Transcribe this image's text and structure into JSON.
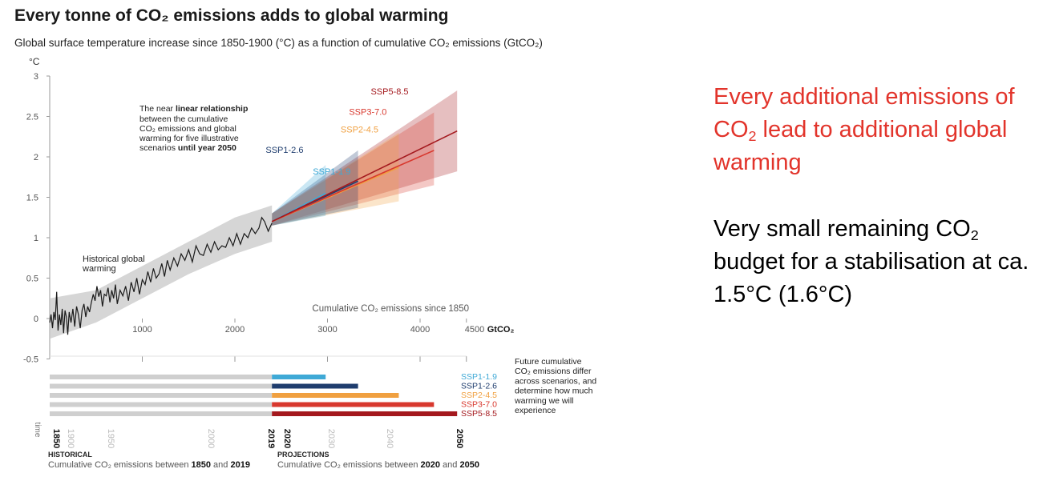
{
  "title": "Every tonne of CO₂ emissions adds to global warming",
  "subtitle": "Global surface temperature increase since 1850-1900 (°C) as a function of cumulative CO₂ emissions (GtCO₂)",
  "side": {
    "line1_pre": "Every additional emissions of CO",
    "line1_sub": "2",
    "line1_post": " lead to additional global warming",
    "line2_pre": "Very small remaining CO",
    "line2_sub": "2",
    "line2_post": " budget for a stabilisation at ca. 1.5°C (1.6°C)"
  },
  "colors": {
    "SSP1-1.9": "#3fa9d6",
    "SSP1-2.6": "#1f3d6e",
    "SSP2-4.5": "#f0a040",
    "SSP3-7.0": "#d8382e",
    "SSP5-8.5": "#a4191e",
    "history": "#1a1a1a",
    "history_band": "#c8c8c8",
    "bars_hist": "#cfcfcf"
  },
  "chart_data": {
    "type": "line",
    "ylabel": "°C",
    "xlabel": "Cumulative CO₂ emissions since 1850",
    "x_unit": "GtCO₂",
    "yticks": [
      "3",
      "2.5",
      "2",
      "1.5",
      "1",
      "0.5",
      "0",
      "-0.5"
    ],
    "xticks": [
      "1000",
      "2000",
      "3000",
      "4000",
      "4500"
    ],
    "ylim": [
      -0.5,
      3
    ],
    "xlim": [
      0,
      4500
    ],
    "annotation_main": {
      "pre": "The near ",
      "bold1": "linear relationship",
      "mid": "between the cumulative CO₂ emissions and global warming for five illustrative scenarios ",
      "bold2": "until year 2050"
    },
    "annotation_history": "Historical global warming",
    "history": [
      [
        0,
        -0.05
      ],
      [
        15,
        0.05
      ],
      [
        30,
        -0.12
      ],
      [
        45,
        0.08
      ],
      [
        60,
        -0.02
      ],
      [
        75,
        0.33
      ],
      [
        90,
        -0.15
      ],
      [
        105,
        0.05
      ],
      [
        120,
        -0.08
      ],
      [
        135,
        0.12
      ],
      [
        150,
        -0.18
      ],
      [
        165,
        0.1
      ],
      [
        180,
        0.02
      ],
      [
        195,
        -0.2
      ],
      [
        210,
        0.08
      ],
      [
        230,
        -0.05
      ],
      [
        250,
        0.12
      ],
      [
        270,
        -0.1
      ],
      [
        290,
        0.15
      ],
      [
        310,
        0.05
      ],
      [
        330,
        -0.12
      ],
      [
        350,
        0.1
      ],
      [
        370,
        0.18
      ],
      [
        390,
        0.02
      ],
      [
        410,
        0.15
      ],
      [
        430,
        0.08
      ],
      [
        450,
        0.2
      ],
      [
        470,
        0.3
      ],
      [
        490,
        0.22
      ],
      [
        510,
        0.4
      ],
      [
        530,
        0.27
      ],
      [
        550,
        0.35
      ],
      [
        570,
        0.15
      ],
      [
        590,
        0.3
      ],
      [
        610,
        0.28
      ],
      [
        630,
        0.38
      ],
      [
        650,
        0.2
      ],
      [
        670,
        0.35
      ],
      [
        690,
        0.25
      ],
      [
        710,
        0.42
      ],
      [
        730,
        0.18
      ],
      [
        760,
        0.35
      ],
      [
        790,
        0.28
      ],
      [
        820,
        0.4
      ],
      [
        850,
        0.22
      ],
      [
        880,
        0.45
      ],
      [
        910,
        0.33
      ],
      [
        940,
        0.5
      ],
      [
        970,
        0.3
      ],
      [
        1000,
        0.48
      ],
      [
        1030,
        0.42
      ],
      [
        1060,
        0.58
      ],
      [
        1090,
        0.45
      ],
      [
        1120,
        0.62
      ],
      [
        1150,
        0.5
      ],
      [
        1180,
        0.55
      ],
      [
        1210,
        0.68
      ],
      [
        1240,
        0.52
      ],
      [
        1270,
        0.72
      ],
      [
        1300,
        0.6
      ],
      [
        1340,
        0.75
      ],
      [
        1380,
        0.65
      ],
      [
        1420,
        0.8
      ],
      [
        1460,
        0.72
      ],
      [
        1500,
        0.85
      ],
      [
        1540,
        0.7
      ],
      [
        1580,
        0.9
      ],
      [
        1620,
        0.8
      ],
      [
        1660,
        0.78
      ],
      [
        1700,
        0.92
      ],
      [
        1740,
        0.82
      ],
      [
        1780,
        0.95
      ],
      [
        1820,
        0.85
      ],
      [
        1860,
        0.9
      ],
      [
        1900,
        0.88
      ],
      [
        1940,
        1.0
      ],
      [
        1980,
        0.9
      ],
      [
        2020,
        1.05
      ],
      [
        2060,
        0.92
      ],
      [
        2100,
        1.05
      ],
      [
        2140,
        1.0
      ],
      [
        2180,
        1.12
      ],
      [
        2220,
        1.05
      ],
      [
        2260,
        1.12
      ],
      [
        2290,
        1.25
      ],
      [
        2320,
        1.2
      ],
      [
        2360,
        1.08
      ],
      [
        2400,
        1.18
      ]
    ],
    "history_band": {
      "x": [
        0,
        500,
        1000,
        1500,
        2000,
        2400
      ],
      "lower": [
        -0.25,
        -0.05,
        0.25,
        0.55,
        0.8,
        0.95
      ],
      "upper": [
        0.25,
        0.35,
        0.65,
        0.95,
        1.25,
        1.4
      ]
    },
    "projections": [
      {
        "name": "SSP1-1.9",
        "x": [
          2400,
          2980
        ],
        "y": [
          1.2,
          1.55
        ],
        "lo": [
          1.15,
          1.27
        ],
        "hi": [
          1.3,
          1.9
        ],
        "label_at": [
          3250,
          1.78
        ]
      },
      {
        "name": "SSP1-2.6",
        "x": [
          2400,
          3330
        ],
        "y": [
          1.2,
          1.7
        ],
        "lo": [
          1.15,
          1.37
        ],
        "hi": [
          1.3,
          2.08
        ],
        "label_at": [
          2740,
          2.05
        ]
      },
      {
        "name": "SSP2-4.5",
        "x": [
          2400,
          3770
        ],
        "y": [
          1.2,
          1.87
        ],
        "lo": [
          1.15,
          1.45
        ],
        "hi": [
          1.3,
          2.3
        ],
        "label_at": [
          3550,
          2.3
        ]
      },
      {
        "name": "SSP3-7.0",
        "x": [
          2400,
          4150
        ],
        "y": [
          1.2,
          2.08
        ],
        "lo": [
          1.15,
          1.65
        ],
        "hi": [
          1.3,
          2.55
        ],
        "label_at": [
          3640,
          2.52
        ]
      },
      {
        "name": "SSP5-8.5",
        "x": [
          2400,
          4400
        ],
        "y": [
          1.2,
          2.32
        ],
        "lo": [
          1.15,
          1.82
        ],
        "hi": [
          1.3,
          2.82
        ],
        "label_at": [
          3875,
          2.77
        ]
      }
    ],
    "timeline": {
      "years": [
        "1850",
        "1900",
        "1950",
        "2000",
        "2019",
        "2020",
        "2030",
        "2040",
        "2050"
      ],
      "time_label": "time",
      "bars": [
        {
          "name": "SSP1-1.9",
          "end": 2980
        },
        {
          "name": "SSP1-2.6",
          "end": 3330
        },
        {
          "name": "SSP2-4.5",
          "end": 3770
        },
        {
          "name": "SSP3-7.0",
          "end": 4150
        },
        {
          "name": "SSP5-8.5",
          "end": 4400
        }
      ],
      "note": "Future cumulative CO₂ emissions differ across scenarios, and determine how much warming we will experience",
      "historical_head": "HISTORICAL",
      "historical_text_pre": "Cumulative CO₂ emissions between ",
      "historical_b1": "1850",
      "historical_and": " and ",
      "historical_b2": "2019",
      "projections_head": "PROJECTIONS",
      "projections_text_pre": "Cumulative CO₂ emissions between ",
      "projections_b1": "2020",
      "projections_and": " and ",
      "projections_b2": "2050"
    }
  }
}
